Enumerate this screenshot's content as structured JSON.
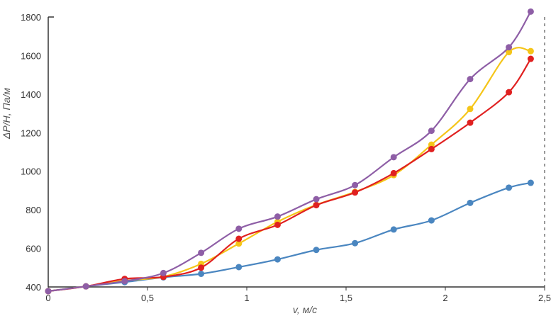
{
  "chart_data": {
    "type": "line",
    "title": "",
    "xlabel": "v, м/с",
    "ylabel": "ΔP/H, Па/м",
    "xlim": [
      0,
      2.5
    ],
    "ylim": [
      400,
      1800
    ],
    "grid": false,
    "legend": "none",
    "x_ticks": [
      {
        "value": 0,
        "label": "0"
      },
      {
        "value": 0.5,
        "label": "0,5"
      },
      {
        "value": 1,
        "label": "1"
      },
      {
        "value": 1.5,
        "label": "1,5"
      },
      {
        "value": 2,
        "label": "2"
      },
      {
        "value": 2.5,
        "label": "2,5"
      }
    ],
    "y_ticks": [
      {
        "value": 400,
        "label": "400"
      },
      {
        "value": 600,
        "label": "600"
      },
      {
        "value": 800,
        "label": "800"
      },
      {
        "value": 1000,
        "label": "1000"
      },
      {
        "value": 1200,
        "label": "1200"
      },
      {
        "value": 1400,
        "label": "1400"
      },
      {
        "value": 1600,
        "label": "1600"
      },
      {
        "value": 1800,
        "label": "1800"
      }
    ],
    "series": [
      {
        "color": "#4a86c0",
        "points": [
          [
            0,
            378
          ],
          [
            0.19,
            403
          ],
          [
            0.385,
            425
          ],
          [
            0.58,
            450
          ],
          [
            0.77,
            468
          ],
          [
            0.96,
            503
          ],
          [
            1.155,
            543
          ],
          [
            1.35,
            592
          ],
          [
            1.545,
            627
          ],
          [
            1.74,
            698
          ],
          [
            1.93,
            745
          ],
          [
            2.125,
            836
          ],
          [
            2.32,
            915
          ],
          [
            2.43,
            940
          ]
        ]
      },
      {
        "color": "#f5c518",
        "points": [
          [
            0,
            378
          ],
          [
            0.19,
            403
          ],
          [
            0.385,
            433
          ],
          [
            0.58,
            453
          ],
          [
            0.77,
            520
          ],
          [
            0.96,
            625
          ],
          [
            1.155,
            738
          ],
          [
            1.35,
            826
          ],
          [
            1.545,
            893
          ],
          [
            1.74,
            980
          ],
          [
            1.93,
            1138
          ],
          [
            2.125,
            1323
          ],
          [
            2.32,
            1618
          ],
          [
            2.43,
            1623
          ]
        ]
      },
      {
        "color": "#e02020",
        "points": [
          [
            0,
            378
          ],
          [
            0.19,
            403
          ],
          [
            0.385,
            442
          ],
          [
            0.58,
            452
          ],
          [
            0.77,
            500
          ],
          [
            0.96,
            650
          ],
          [
            1.155,
            722
          ],
          [
            1.35,
            824
          ],
          [
            1.545,
            890
          ],
          [
            1.74,
            990
          ],
          [
            1.93,
            1115
          ],
          [
            2.125,
            1252
          ],
          [
            2.32,
            1410
          ],
          [
            2.43,
            1583
          ]
        ]
      },
      {
        "color": "#8e5ea6",
        "points": [
          [
            0,
            378
          ],
          [
            0.19,
            403
          ],
          [
            0.385,
            430
          ],
          [
            0.58,
            472
          ],
          [
            0.77,
            577
          ],
          [
            0.96,
            702
          ],
          [
            1.155,
            765
          ],
          [
            1.35,
            855
          ],
          [
            1.545,
            928
          ],
          [
            1.74,
            1073
          ],
          [
            1.93,
            1210
          ],
          [
            2.125,
            1478
          ],
          [
            2.32,
            1643
          ],
          [
            2.43,
            1828
          ]
        ]
      }
    ]
  }
}
